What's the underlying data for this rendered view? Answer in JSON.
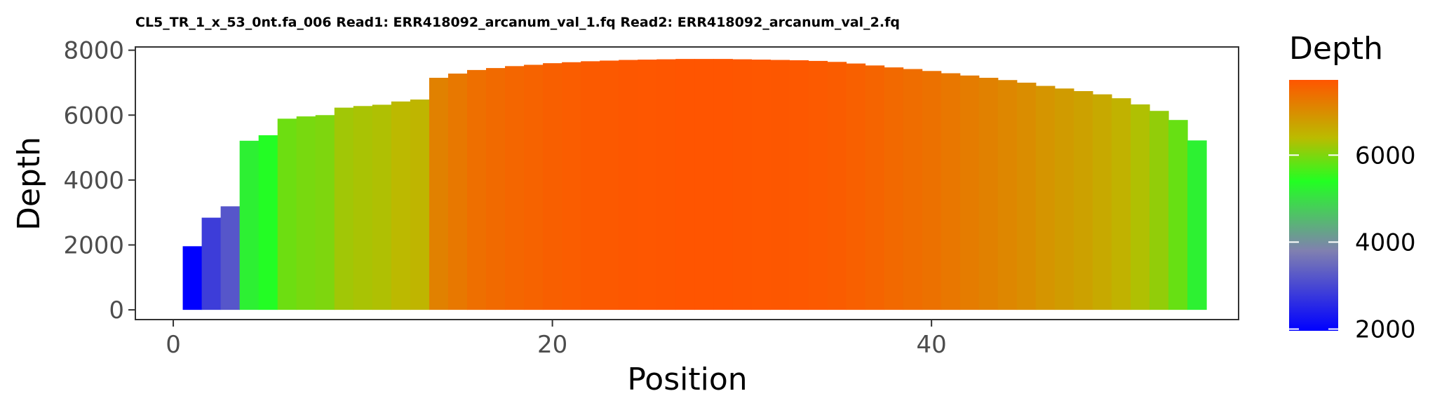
{
  "chart_data": {
    "type": "bar",
    "title": "CL5_TR_1_x_53_0nt.fa_006 Read1: ERR418092_arcanum_val_1.fq Read2: ERR418092_arcanum_val_2.fq",
    "xlabel": "Position",
    "ylabel": "Depth",
    "x": [
      1,
      2,
      3,
      4,
      5,
      6,
      7,
      8,
      9,
      10,
      11,
      12,
      13,
      14,
      15,
      16,
      17,
      18,
      19,
      20,
      21,
      22,
      23,
      24,
      25,
      26,
      27,
      28,
      29,
      30,
      31,
      32,
      33,
      34,
      35,
      36,
      37,
      38,
      39,
      40,
      41,
      42,
      43,
      44,
      45,
      46,
      47,
      48,
      49,
      50,
      51,
      52,
      53,
      54
    ],
    "values": [
      1960,
      2840,
      3190,
      5210,
      5380,
      5890,
      5960,
      6000,
      6230,
      6280,
      6320,
      6420,
      6480,
      7150,
      7280,
      7390,
      7450,
      7510,
      7550,
      7600,
      7630,
      7660,
      7680,
      7700,
      7710,
      7720,
      7730,
      7730,
      7730,
      7720,
      7710,
      7700,
      7690,
      7670,
      7640,
      7590,
      7530,
      7470,
      7420,
      7360,
      7290,
      7220,
      7150,
      7080,
      7000,
      6900,
      6820,
      6740,
      6640,
      6520,
      6330,
      6130,
      5850,
      5220
    ],
    "xlim": [
      -2,
      56.2
    ],
    "ylim": [
      -300,
      8100
    ],
    "x_ticks": [
      0,
      20,
      40
    ],
    "x_tick_labels": [
      "0",
      "20",
      "40"
    ],
    "y_ticks": [
      0,
      2000,
      4000,
      6000,
      8000
    ],
    "y_tick_labels": [
      "0",
      "2000",
      "4000",
      "6000",
      "8000"
    ],
    "grid": false,
    "legend": {
      "title": "Depth",
      "placement": "right",
      "type": "colorbar",
      "range": [
        1960,
        7730
      ],
      "ticks": [
        2000,
        4000,
        6000
      ],
      "tick_labels": [
        "2000",
        "4000",
        "6000"
      ],
      "gradient_stops": [
        {
          "value": 1960,
          "color": "#0000ff"
        },
        {
          "value": 3800,
          "color": "#8080b0"
        },
        {
          "value": 5400,
          "color": "#22ff22"
        },
        {
          "value": 6400,
          "color": "#bbbb00"
        },
        {
          "value": 7730,
          "color": "#ff5500"
        }
      ]
    }
  }
}
